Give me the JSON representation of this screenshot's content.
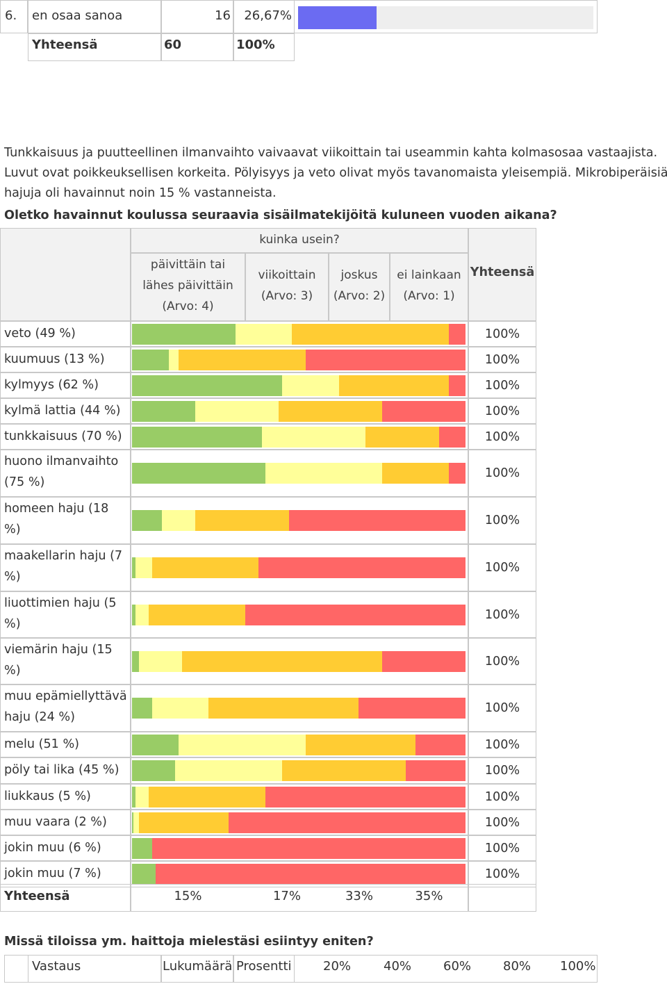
{
  "top_table": {
    "row6": {
      "num": "6.",
      "label": "en osaa sanoa",
      "count": "16",
      "percent": "26,67%",
      "fraction": 0.2667
    },
    "total": {
      "label": "Yhteensä",
      "count": "60",
      "percent": "100%"
    }
  },
  "text": {
    "para1": "Tunkkaisuus ja puutteellinen ilmanvaihto vaivaavat viikoittain tai useammin kahta kolmasosaa vastaajista.",
    "para2": "Luvut ovat poikkeuksellisen korkeita. Pölyisyys ja veto olivat myös tavanomaista yleisempiä. Mikrobiperäisiä",
    "para3": "hajuja oli havainnut noin 15 % vastanneista.",
    "question1": "Oletko havainnut koulussa seuraavia sisäilmatekijöitä kuluneen vuoden aikana?",
    "question2": "Missä tiloissa ym. haittoja mielestäsi esiintyy eniten?"
  },
  "chart_data": {
    "type": "bar",
    "stacked": true,
    "orientation": "horizontal",
    "header": "kuinka usein?",
    "columns": [
      {
        "line1": "päivittäin tai",
        "line2": "lähes päivittäin",
        "line3": "(Arvo: 4)"
      },
      {
        "line1": "viikoittain",
        "line2": "(Arvo: 3)"
      },
      {
        "line1": "joskus",
        "line2": "(Arvo: 2)"
      },
      {
        "line1": "ei lainkaan",
        "line2": "(Arvo: 1)"
      }
    ],
    "total_header": "Yhteensä",
    "series": [
      {
        "name": "päivittäin tai lähes päivittäin",
        "color": "#99cc66"
      },
      {
        "name": "viikoittain",
        "color": "#ffff99"
      },
      {
        "name": "joskus",
        "color": "#ffcc33"
      },
      {
        "name": "ei lainkaan",
        "color": "#ff6666"
      }
    ],
    "categories": [
      "veto (49 %)",
      "kuumuus (13 %)",
      "kylmyys (62 %)",
      "kylmä lattia (44 %)",
      "tunkkaisuus (70 %)",
      "huono ilmanvaihto (75 %)",
      "homeen haju (18 %)",
      "maakellarin haju (7 %)",
      "liuottimien haju (5 %)",
      "viemärin haju (15 %)",
      "muu epämiellyttävä haju (24 %)",
      "melu (51 %)",
      "pöly tai lika (45 %)",
      "liukkaus (5 %)",
      "muu vaara (2 %)",
      "jokin muu (6 %)",
      "jokin muu (7 %)"
    ],
    "values": [
      [
        31,
        17,
        47,
        5
      ],
      [
        11,
        3,
        38,
        48
      ],
      [
        45,
        17,
        33,
        5
      ],
      [
        19,
        25,
        31,
        25
      ],
      [
        39,
        31,
        22,
        8
      ],
      [
        40,
        35,
        20,
        5
      ],
      [
        9,
        10,
        28,
        53
      ],
      [
        1,
        5,
        32,
        62
      ],
      [
        1,
        4,
        29,
        66
      ],
      [
        2,
        13,
        60,
        25
      ],
      [
        6,
        17,
        45,
        32
      ],
      [
        14,
        38,
        33,
        15
      ],
      [
        13,
        32,
        37,
        18
      ],
      [
        1,
        4,
        35,
        60
      ],
      [
        0.5,
        1.5,
        27,
        71
      ],
      [
        6,
        0,
        0,
        94
      ],
      [
        7,
        0,
        0,
        93
      ]
    ],
    "row_total": "100%",
    "footer": {
      "label": "Yhteensä",
      "values": [
        "15%",
        "17%",
        "33%",
        "35%"
      ]
    }
  },
  "bottom_table": {
    "headers": [
      "Vastaus",
      "Lukumäärä",
      "Prosentti"
    ],
    "scale": [
      "20%",
      "40%",
      "60%",
      "80%",
      "100%"
    ]
  }
}
